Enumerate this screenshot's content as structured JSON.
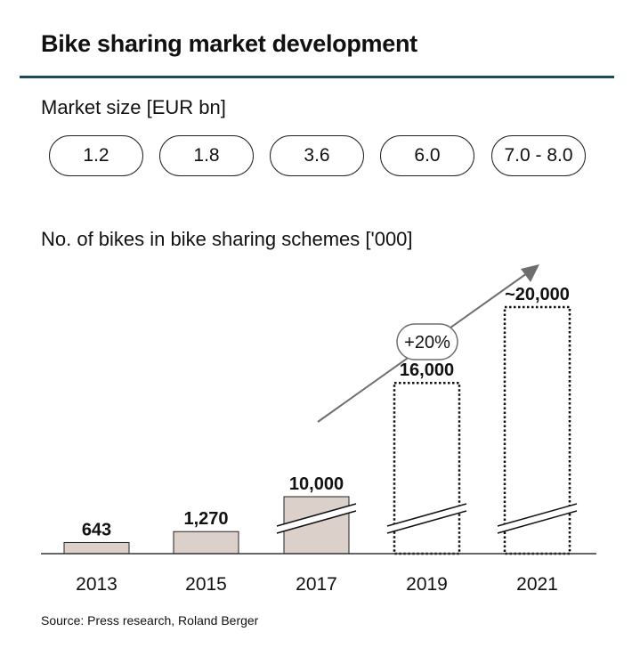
{
  "title": "Bike sharing market development",
  "market": {
    "label": "Market size [EUR bn]",
    "values": [
      "1.2",
      "1.8",
      "3.6",
      "6.0",
      "7.0 - 8.0"
    ]
  },
  "chart_data": {
    "type": "bar",
    "title": "No. of bikes in bike sharing schemes ['000]",
    "categories": [
      "2013",
      "2015",
      "2017",
      "2019",
      "2021"
    ],
    "values": [
      643,
      1270,
      10000,
      16000,
      20000
    ],
    "labels": [
      "643",
      "1,270",
      "10,000",
      "16,000",
      "~20,000"
    ],
    "projected": [
      false,
      false,
      false,
      true,
      true
    ],
    "axis_break": [
      false,
      false,
      true,
      true,
      true
    ],
    "growth_annotation": "+20%",
    "bar_color": "#dbd1ca"
  },
  "source": "Source: Press research, Roland Berger"
}
